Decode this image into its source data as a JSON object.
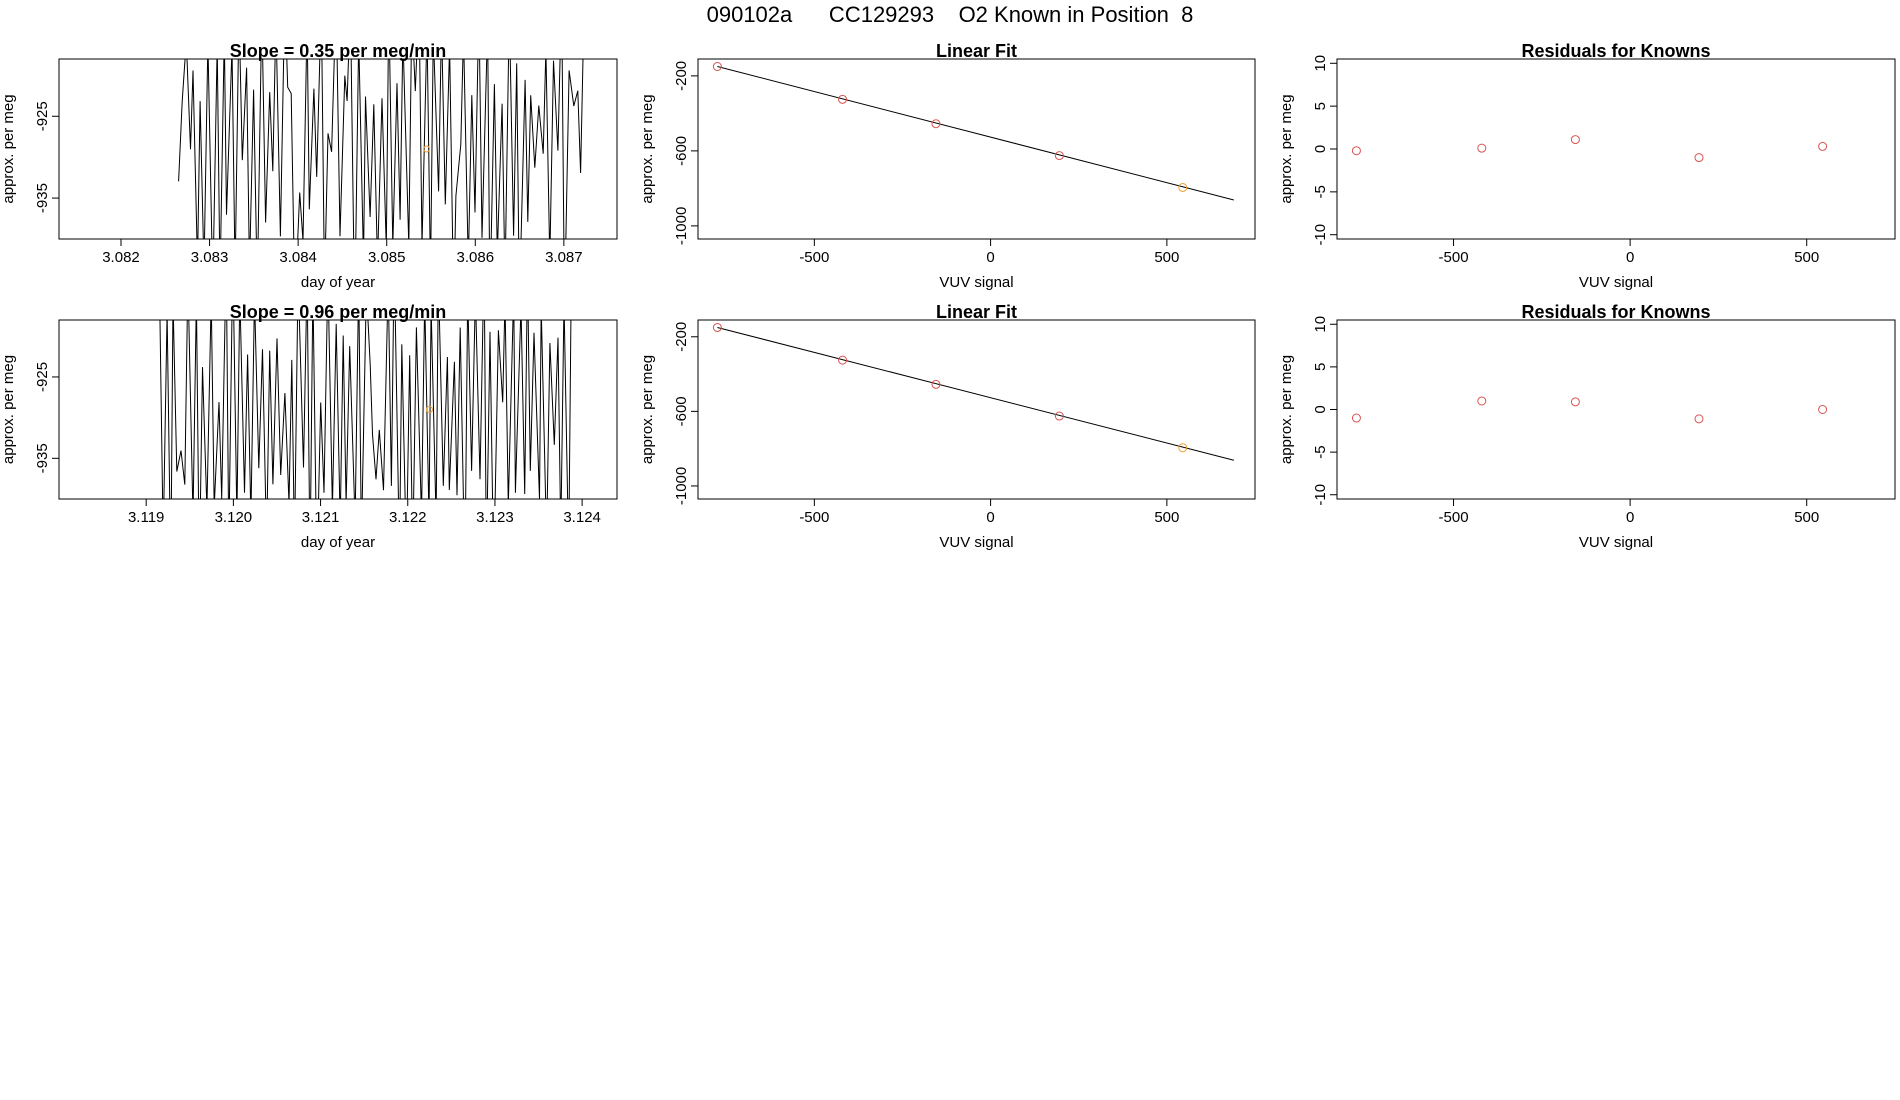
{
  "page": {
    "title": "090102a      CC129293    O2 Known in Position  8"
  },
  "colors": {
    "axis": "#000000",
    "trace": "#000000",
    "point": "#d9534f",
    "highlight": "#f0a030",
    "fit_line": "#000000"
  },
  "chart_data": [
    {
      "type": "line",
      "id": "drift-row1",
      "title": "Slope =  0.35  per meg/min",
      "xlabel": "day of year",
      "ylabel": "approx. per meg",
      "xlim": [
        3.0813,
        3.0876
      ],
      "ylim": [
        -940,
        -918
      ],
      "xticks": [
        "3.082",
        "3.083",
        "3.084",
        "3.085",
        "3.086",
        "3.087"
      ],
      "xtick_values": [
        3.082,
        3.083,
        3.084,
        3.085,
        3.086,
        3.087
      ],
      "yticks": [
        "-925",
        "-935"
      ],
      "ytick_values": [
        -925,
        -935
      ],
      "trace_x_range": [
        3.08265,
        3.08723
      ],
      "trace_swing": [
        -950,
        -910
      ],
      "trace_cycles": 54,
      "highlight_point": {
        "x": 3.08545,
        "y": -929
      }
    },
    {
      "type": "scatter",
      "id": "fit-row1",
      "title": "Linear Fit",
      "xlabel": "VUV signal",
      "ylabel": "approx. per meg",
      "xlim": [
        -830,
        750
      ],
      "ylim": [
        -1070,
        -110
      ],
      "xticks": [
        "-500",
        "0",
        "500"
      ],
      "xtick_values": [
        -500,
        0,
        500
      ],
      "yticks": [
        "-200",
        "-600",
        "-1000"
      ],
      "ytick_values": [
        -200,
        -600,
        -1000
      ],
      "points": [
        {
          "x": -775,
          "y": -150
        },
        {
          "x": -420,
          "y": -325
        },
        {
          "x": -155,
          "y": -455
        },
        {
          "x": 195,
          "y": -625
        },
        {
          "x": 545,
          "y": -795
        }
      ],
      "highlight_index": 4,
      "fit": {
        "x0": -775,
        "y0": -150,
        "x1": 690,
        "y1": -862
      }
    },
    {
      "type": "scatter",
      "id": "resid-row1",
      "title": "Residuals for Knowns",
      "xlabel": "VUV signal",
      "ylabel": "approx. per meg",
      "xlim": [
        -830,
        750
      ],
      "ylim": [
        -10.5,
        10.5
      ],
      "xticks": [
        "-500",
        "0",
        "500"
      ],
      "xtick_values": [
        -500,
        0,
        500
      ],
      "yticks": [
        "10",
        "5",
        "0",
        "-5",
        "-10"
      ],
      "ytick_values": [
        10,
        5,
        0,
        -5,
        -10
      ],
      "points": [
        {
          "x": -775,
          "y": -0.2
        },
        {
          "x": -420,
          "y": 0.1
        },
        {
          "x": -155,
          "y": 1.1
        },
        {
          "x": 195,
          "y": -1.0
        },
        {
          "x": 545,
          "y": 0.3
        }
      ]
    },
    {
      "type": "line",
      "id": "drift-row2",
      "title": "Slope =  0.96  per meg/min",
      "xlabel": "day of year",
      "ylabel": "approx. per meg",
      "xlim": [
        3.118,
        3.1244
      ],
      "ylim": [
        -940,
        -918
      ],
      "xticks": [
        "3.119",
        "3.120",
        "3.121",
        "3.122",
        "3.123",
        "3.124"
      ],
      "xtick_values": [
        3.119,
        3.12,
        3.121,
        3.122,
        3.123,
        3.124
      ],
      "yticks": [
        "-925",
        "-935"
      ],
      "ytick_values": [
        -925,
        -935
      ],
      "trace_x_range": [
        3.11915,
        3.12388
      ],
      "trace_swing": [
        -950,
        -910
      ],
      "trace_cycles": 56,
      "highlight_point": {
        "x": 3.12225,
        "y": -929
      }
    },
    {
      "type": "scatter",
      "id": "fit-row2",
      "title": "Linear Fit",
      "xlabel": "VUV signal",
      "ylabel": "approx. per meg",
      "xlim": [
        -830,
        750
      ],
      "ylim": [
        -1070,
        -110
      ],
      "xticks": [
        "-500",
        "0",
        "500"
      ],
      "xtick_values": [
        -500,
        0,
        500
      ],
      "yticks": [
        "-200",
        "-600",
        "-1000"
      ],
      "ytick_values": [
        -200,
        -600,
        -1000
      ],
      "points": [
        {
          "x": -775,
          "y": -150
        },
        {
          "x": -420,
          "y": -325
        },
        {
          "x": -155,
          "y": -455
        },
        {
          "x": 195,
          "y": -625
        },
        {
          "x": 545,
          "y": -795
        }
      ],
      "highlight_index": 4,
      "fit": {
        "x0": -775,
        "y0": -150,
        "x1": 690,
        "y1": -862
      }
    },
    {
      "type": "scatter",
      "id": "resid-row2",
      "title": "Residuals for Knowns",
      "xlabel": "VUV signal",
      "ylabel": "approx. per meg",
      "xlim": [
        -830,
        750
      ],
      "ylim": [
        -10.5,
        10.5
      ],
      "xticks": [
        "-500",
        "0",
        "500"
      ],
      "xtick_values": [
        -500,
        0,
        500
      ],
      "yticks": [
        "10",
        "5",
        "0",
        "-5",
        "-10"
      ],
      "ytick_values": [
        10,
        5,
        0,
        -5,
        -10
      ],
      "points": [
        {
          "x": -775,
          "y": -1.0
        },
        {
          "x": -420,
          "y": 1.0
        },
        {
          "x": -155,
          "y": 0.9
        },
        {
          "x": 195,
          "y": -1.1
        },
        {
          "x": 545,
          "y": 0.0
        }
      ]
    }
  ]
}
